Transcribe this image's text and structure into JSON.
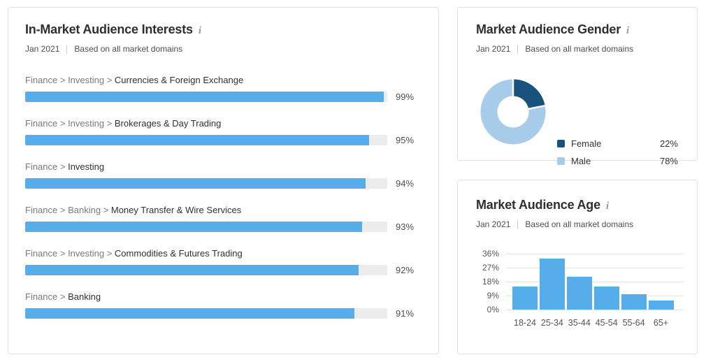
{
  "interests": {
    "title": "In-Market Audience Interests",
    "info_icon": "i",
    "period": "Jan 2021",
    "scope": "Based on all market domains",
    "rows": [
      {
        "prefix": "Finance > Investing > ",
        "name": "Currencies & Foreign Exchange",
        "value": 99,
        "value_label": "99%"
      },
      {
        "prefix": "Finance > Investing > ",
        "name": "Brokerages & Day Trading",
        "value": 95,
        "value_label": "95%"
      },
      {
        "prefix": "Finance > ",
        "name": "Investing",
        "value": 94,
        "value_label": "94%"
      },
      {
        "prefix": "Finance > Banking > ",
        "name": "Money Transfer & Wire Services",
        "value": 93,
        "value_label": "93%"
      },
      {
        "prefix": "Finance > Investing > ",
        "name": "Commodities & Futures Trading",
        "value": 92,
        "value_label": "92%"
      },
      {
        "prefix": "Finance > ",
        "name": "Banking",
        "value": 91,
        "value_label": "91%"
      }
    ]
  },
  "gender": {
    "title": "Market Audience Gender",
    "info_icon": "i",
    "period": "Jan 2021",
    "scope": "Based on all market domains",
    "segments": [
      {
        "label": "Female",
        "value": 22,
        "value_label": "22%",
        "color": "#1A527E"
      },
      {
        "label": "Male",
        "value": 78,
        "value_label": "78%",
        "color": "#A6CCEA"
      }
    ]
  },
  "age": {
    "title": "Market Audience Age",
    "info_icon": "i",
    "period": "Jan 2021",
    "scope": "Based on all market domains",
    "ymax": 36,
    "yticks": [
      {
        "value": 36,
        "label": "36%"
      },
      {
        "value": 27,
        "label": "27%"
      },
      {
        "value": 18,
        "label": "18%"
      },
      {
        "value": 9,
        "label": "9%"
      },
      {
        "value": 0,
        "label": "0%"
      }
    ],
    "bars": [
      {
        "label": "18-24",
        "value": 15
      },
      {
        "label": "25-34",
        "value": 33
      },
      {
        "label": "35-44",
        "value": 21
      },
      {
        "label": "45-54",
        "value": 15
      },
      {
        "label": "55-64",
        "value": 10
      },
      {
        "label": "65+",
        "value": 6
      }
    ]
  },
  "colors": {
    "bar_blue": "#57ACEA",
    "bar_track": "#ECECEC",
    "donut_female": "#1A527E",
    "donut_male": "#A6CCEA",
    "panel_border": "#E2E2E2",
    "gridline": "#E4E4E4"
  },
  "chart_data": [
    {
      "type": "bar",
      "orientation": "horizontal",
      "title": "In-Market Audience Interests",
      "subtitle": "Jan 2021 | Based on all market domains",
      "categories": [
        "Finance > Investing > Currencies & Foreign Exchange",
        "Finance > Investing > Brokerages & Day Trading",
        "Finance > Investing",
        "Finance > Banking > Money Transfer & Wire Services",
        "Finance > Investing > Commodities & Futures Trading",
        "Finance > Banking"
      ],
      "values": [
        99,
        95,
        94,
        93,
        92,
        91
      ],
      "unit": "%",
      "xlim": [
        0,
        100
      ],
      "grid": false,
      "bar_color": "#57ACEA"
    },
    {
      "type": "pie",
      "subtype": "donut",
      "title": "Market Audience Gender",
      "subtitle": "Jan 2021 | Based on all market domains",
      "labels": [
        "Female",
        "Male"
      ],
      "values": [
        22,
        78
      ],
      "unit": "%",
      "colors": [
        "#1A527E",
        "#A6CCEA"
      ],
      "legend_position": "right",
      "start_angle_deg": 0,
      "direction": "clockwise"
    },
    {
      "type": "bar",
      "orientation": "vertical",
      "title": "Market Audience Age",
      "subtitle": "Jan 2021 | Based on all market domains",
      "categories": [
        "18-24",
        "25-34",
        "35-44",
        "45-54",
        "55-64",
        "65+"
      ],
      "values": [
        15,
        33,
        21,
        15,
        10,
        6
      ],
      "unit": "%",
      "ylim": [
        0,
        36
      ],
      "yticks": [
        0,
        9,
        18,
        27,
        36
      ],
      "grid": true,
      "bar_color": "#57ACEA"
    }
  ]
}
